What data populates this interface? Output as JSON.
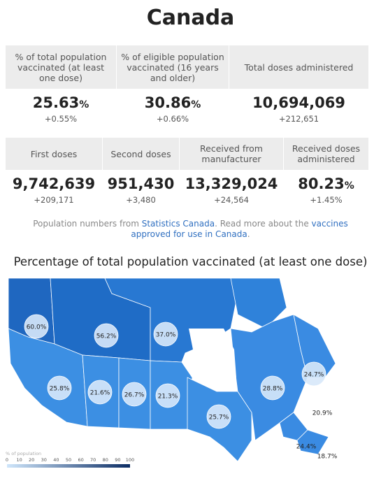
{
  "header": {
    "title": "Canada"
  },
  "stats_row_1": [
    {
      "label": "% of total population vaccinated (at least one dose)",
      "value": "25.63",
      "unit": "%",
      "change": "+0.55%"
    },
    {
      "label": "% of eligible population vaccinated (16 years and older)",
      "value": "30.86",
      "unit": "%",
      "change": "+0.66%"
    },
    {
      "label": "Total doses administered",
      "value": "10,694,069",
      "change": "+212,651"
    }
  ],
  "stats_row_2": [
    {
      "label": "First doses",
      "value": "9,742,639",
      "change": "+209,171"
    },
    {
      "label": "Second doses",
      "value": "951,430",
      "change": "+3,480"
    },
    {
      "label": "Received from manufacturer",
      "value": "13,329,024",
      "change": "+24,564"
    },
    {
      "label": "Received doses administered",
      "value": "80.23",
      "unit": "%",
      "change": "+1.45%"
    }
  ],
  "note": {
    "text_1": "Population numbers from ",
    "link_1": "Statistics Canada",
    "text_2": ". Read more about the ",
    "link_2": "vaccines approved for use in Canada",
    "text_3": "."
  },
  "map": {
    "title": "Percentage of total population vaccinated (at least one dose)",
    "regions": [
      {
        "label": "60.0%"
      },
      {
        "label": "56.2%"
      },
      {
        "label": "37.0%"
      },
      {
        "label": "25.8%"
      },
      {
        "label": "21.6%"
      },
      {
        "label": "26.7%"
      },
      {
        "label": "21.3%"
      },
      {
        "label": "25.7%"
      },
      {
        "label": "28.8%"
      },
      {
        "label": "24.7%"
      },
      {
        "label": "20.9%"
      },
      {
        "label": "24.4%"
      },
      {
        "label": "18.7%"
      }
    ],
    "legend": {
      "title": "% of population",
      "ticks": [
        "0",
        "10",
        "20",
        "30",
        "40",
        "50",
        "60",
        "70",
        "80",
        "90",
        "100"
      ]
    }
  }
}
